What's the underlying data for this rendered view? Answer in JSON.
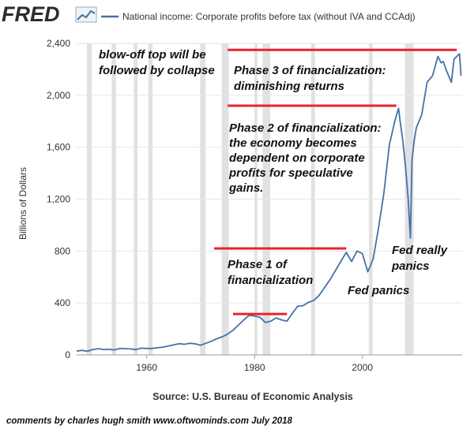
{
  "header": {
    "logo": "FRED",
    "logo_icon": "line-chart-icon",
    "series_title": "National income: Corporate profits before tax (without IVA and CCAdj)"
  },
  "colors": {
    "logo": "#2c2c2c",
    "series": "#4572a7",
    "recession": "#e1e1e1",
    "annotation_line": "#e8232f",
    "grid": "#e6e6e6",
    "text": "#333333"
  },
  "footer": {
    "source": "Source: U.S. Bureau of Economic Analysis",
    "credit": "comments by charles hugh smith   www.oftwominds.com  July 2018"
  },
  "chart_data": {
    "type": "line",
    "title": "National income: Corporate profits before tax (without IVA and CCAdj)",
    "xlabel": "",
    "ylabel": "Billions of Dollars",
    "xlim": [
      1947,
      2018.5
    ],
    "ylim": [
      0,
      2400
    ],
    "xticks": [
      1960,
      1980,
      2000
    ],
    "yticks": [
      0,
      400,
      800,
      1200,
      1600,
      2000,
      2400
    ],
    "ytick_labels": [
      "0",
      "400",
      "800",
      "1,200",
      "1,600",
      "2,000",
      "2,400"
    ],
    "grid": true,
    "recessions": [
      [
        1948.9,
        1949.8
      ],
      [
        1953.5,
        1954.3
      ],
      [
        1957.6,
        1958.3
      ],
      [
        1960.3,
        1961.1
      ],
      [
        1969.9,
        1970.9
      ],
      [
        1973.9,
        1975.2
      ],
      [
        1980.0,
        1980.5
      ],
      [
        1981.5,
        1982.9
      ],
      [
        1990.5,
        1991.2
      ],
      [
        2001.2,
        2001.9
      ],
      [
        2007.9,
        2009.5
      ]
    ],
    "series": [
      {
        "name": "Corporate profits before tax (without IVA and CCAdj)",
        "x": [
          1947,
          1948,
          1949,
          1950,
          1951,
          1952,
          1953,
          1954,
          1955,
          1956,
          1957,
          1958,
          1959,
          1960,
          1961,
          1962,
          1963,
          1964,
          1965,
          1966,
          1967,
          1968,
          1969,
          1970,
          1971,
          1972,
          1973,
          1974,
          1975,
          1976,
          1977,
          1978,
          1979,
          1980,
          1981,
          1982,
          1983,
          1984,
          1985,
          1986,
          1987,
          1988,
          1989,
          1990,
          1991,
          1992,
          1993,
          1994,
          1995,
          1996,
          1997,
          1998,
          1999,
          2000,
          2001,
          2002,
          2003,
          2004,
          2005,
          2006,
          2006.7,
          2007,
          2007.5,
          2008,
          2008.5,
          2008.9,
          2009.2,
          2009.6,
          2010,
          2011,
          2012,
          2013,
          2014,
          2014.6,
          2015,
          2015.5,
          2016,
          2016.5,
          2017,
          2017.5,
          2018,
          2018.3
        ],
        "values": [
          30,
          35,
          28,
          42,
          48,
          42,
          43,
          38,
          50,
          48,
          46,
          41,
          52,
          50,
          50,
          55,
          60,
          68,
          78,
          86,
          82,
          90,
          85,
          75,
          90,
          105,
          125,
          140,
          160,
          190,
          230,
          270,
          305,
          300,
          290,
          250,
          260,
          285,
          270,
          260,
          320,
          375,
          380,
          405,
          420,
          460,
          520,
          580,
          650,
          720,
          790,
          720,
          800,
          780,
          640,
          740,
          980,
          1250,
          1620,
          1800,
          1900,
          1800,
          1650,
          1450,
          1200,
          900,
          1500,
          1650,
          1750,
          1850,
          2100,
          2150,
          2300,
          2250,
          2260,
          2200,
          2150,
          2100,
          2280,
          2300,
          2320,
          2150
        ]
      }
    ],
    "annotations": [
      {
        "text": [
          "blow-off top will be",
          "followed by collapse"
        ]
      },
      {
        "text": [
          "Phase 3 of financialization:",
          "diminishing returns"
        ],
        "line": {
          "x": [
            1975,
            2017.5
          ],
          "y": 2350
        }
      },
      {
        "text": [
          "Phase 2 of financialization:",
          "the economy becomes",
          "dependent on corporate",
          "profits for speculative",
          "gains."
        ],
        "line": {
          "x": [
            1975,
            2006.3
          ],
          "y": 1920
        }
      },
      {
        "text": [
          "Phase 1 of",
          "financialization"
        ],
        "line": {
          "x": [
            1972.5,
            1997
          ],
          "y": 820
        }
      },
      {
        "text": [
          "Fed panics"
        ]
      },
      {
        "text": [
          "Fed really",
          "panics"
        ]
      },
      {
        "line": {
          "x": [
            1976,
            1986
          ],
          "y": 315
        }
      }
    ]
  }
}
